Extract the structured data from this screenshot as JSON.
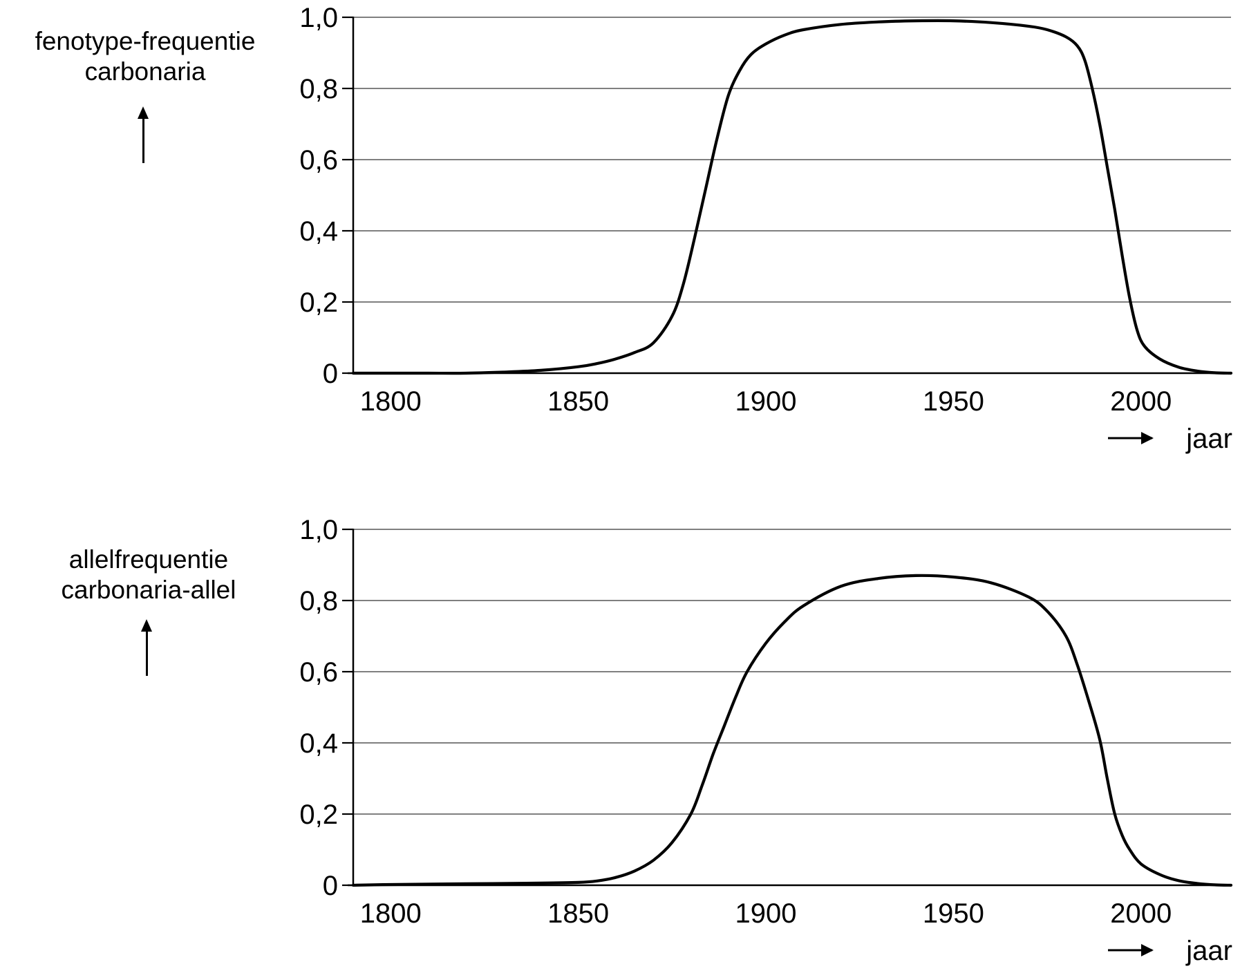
{
  "chart_data": [
    {
      "type": "line",
      "ylabel": [
        "fenotype-frequentie",
        "carbonaria"
      ],
      "xlabel": "jaar",
      "xlim": [
        1790,
        2024
      ],
      "ylim": [
        0,
        1.0
      ],
      "x_ticks": [
        1800,
        1850,
        1900,
        1950,
        2000
      ],
      "x_tick_labels": [
        "1800",
        "1850",
        "1900",
        "1950",
        "2000"
      ],
      "y_ticks": [
        0,
        0.2,
        0.4,
        0.6,
        0.8,
        1.0
      ],
      "y_tick_labels": [
        "0",
        "0,2",
        "0,4",
        "0,6",
        "0,8",
        "1,0"
      ],
      "grid": "horizontal",
      "series": [
        {
          "x": [
            1790,
            1800,
            1810,
            1820,
            1830,
            1840,
            1850,
            1855,
            1860,
            1865,
            1870,
            1875,
            1878,
            1881,
            1884,
            1887,
            1890,
            1893,
            1896,
            1900,
            1905,
            1910,
            1920,
            1930,
            1940,
            1950,
            1960,
            1970,
            1975,
            1980,
            1983,
            1985,
            1987,
            1989,
            1991,
            1993,
            1995,
            1997,
            1999,
            2001,
            2005,
            2010,
            2015,
            2020,
            2024
          ],
          "y": [
            0.0,
            0.0,
            0.0,
            0.0,
            0.003,
            0.008,
            0.018,
            0.027,
            0.04,
            0.058,
            0.085,
            0.16,
            0.25,
            0.38,
            0.52,
            0.66,
            0.78,
            0.85,
            0.895,
            0.925,
            0.95,
            0.965,
            0.98,
            0.987,
            0.99,
            0.99,
            0.985,
            0.975,
            0.965,
            0.945,
            0.92,
            0.88,
            0.8,
            0.7,
            0.58,
            0.46,
            0.33,
            0.21,
            0.12,
            0.075,
            0.04,
            0.017,
            0.006,
            0.001,
            0.0
          ]
        }
      ]
    },
    {
      "type": "line",
      "ylabel": [
        "allelfrequentie",
        "carbonaria-allel"
      ],
      "xlabel": "jaar",
      "xlim": [
        1790,
        2024
      ],
      "ylim": [
        0,
        1.0
      ],
      "x_ticks": [
        1800,
        1850,
        1900,
        1950,
        2000
      ],
      "x_tick_labels": [
        "1800",
        "1850",
        "1900",
        "1950",
        "2000"
      ],
      "y_ticks": [
        0,
        0.2,
        0.4,
        0.6,
        0.8,
        1.0
      ],
      "y_tick_labels": [
        "0",
        "0,2",
        "0,4",
        "0,6",
        "0,8",
        "1,0"
      ],
      "grid": "horizontal",
      "series": [
        {
          "x": [
            1790,
            1800,
            1820,
            1840,
            1850,
            1855,
            1860,
            1865,
            1870,
            1875,
            1880,
            1883,
            1886,
            1889,
            1892,
            1895,
            1900,
            1905,
            1910,
            1920,
            1930,
            1940,
            1950,
            1960,
            1970,
            1975,
            1980,
            1983,
            1986,
            1989,
            1991,
            1993,
            1995,
            1997,
            2000,
            2005,
            2010,
            2015,
            2020,
            2024
          ],
          "y": [
            0.0,
            0.002,
            0.004,
            0.006,
            0.008,
            0.012,
            0.022,
            0.04,
            0.07,
            0.12,
            0.2,
            0.28,
            0.37,
            0.45,
            0.53,
            0.6,
            0.68,
            0.74,
            0.785,
            0.84,
            0.862,
            0.87,
            0.866,
            0.85,
            0.81,
            0.77,
            0.7,
            0.62,
            0.52,
            0.41,
            0.3,
            0.2,
            0.14,
            0.1,
            0.06,
            0.03,
            0.013,
            0.005,
            0.001,
            0.0
          ]
        }
      ]
    }
  ]
}
